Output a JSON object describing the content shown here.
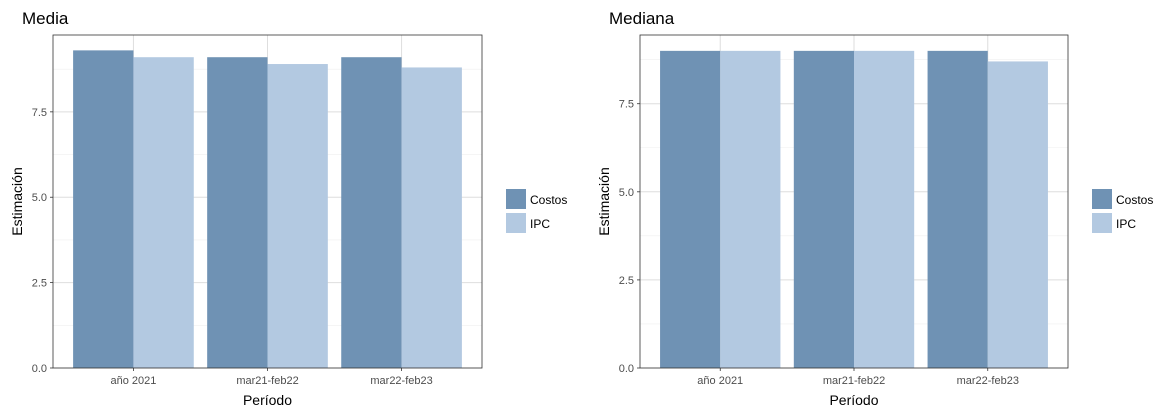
{
  "colors": {
    "Costos": "#6f92b4",
    "IPC": "#b3c9e1",
    "panel_border": "#333333",
    "grid_major": "#dedede",
    "grid_minor": "#efefef",
    "tick_text": "#4d4d4d"
  },
  "chart_data": [
    {
      "type": "bar",
      "title": "Media",
      "xlabel": "Período",
      "ylabel": "Estimación",
      "categories": [
        "año 2021",
        "mar21-feb22",
        "mar22-feb23"
      ],
      "series": [
        {
          "name": "Costos",
          "values": [
            9.3,
            9.1,
            9.1
          ]
        },
        {
          "name": "IPC",
          "values": [
            9.1,
            8.9,
            8.8
          ]
        }
      ],
      "ylim": [
        0,
        9.75
      ],
      "yticks": [
        0,
        2.5,
        5,
        7.5
      ],
      "ytick_labels": [
        "0.0",
        "2.5",
        "5.0",
        "7.5"
      ],
      "grid": true,
      "legend_position": "right"
    },
    {
      "type": "bar",
      "title": "Mediana",
      "xlabel": "Período",
      "ylabel": "Estimación",
      "categories": [
        "año 2021",
        "mar21-feb22",
        "mar22-feb23"
      ],
      "series": [
        {
          "name": "Costos",
          "values": [
            9.0,
            9.0,
            9.0
          ]
        },
        {
          "name": "IPC",
          "values": [
            9.0,
            9.0,
            8.7
          ]
        }
      ],
      "ylim": [
        0,
        9.45
      ],
      "yticks": [
        0,
        2.5,
        5,
        7.5
      ],
      "ytick_labels": [
        "0.0",
        "2.5",
        "5.0",
        "7.5"
      ],
      "grid": true,
      "legend_position": "right"
    }
  ]
}
